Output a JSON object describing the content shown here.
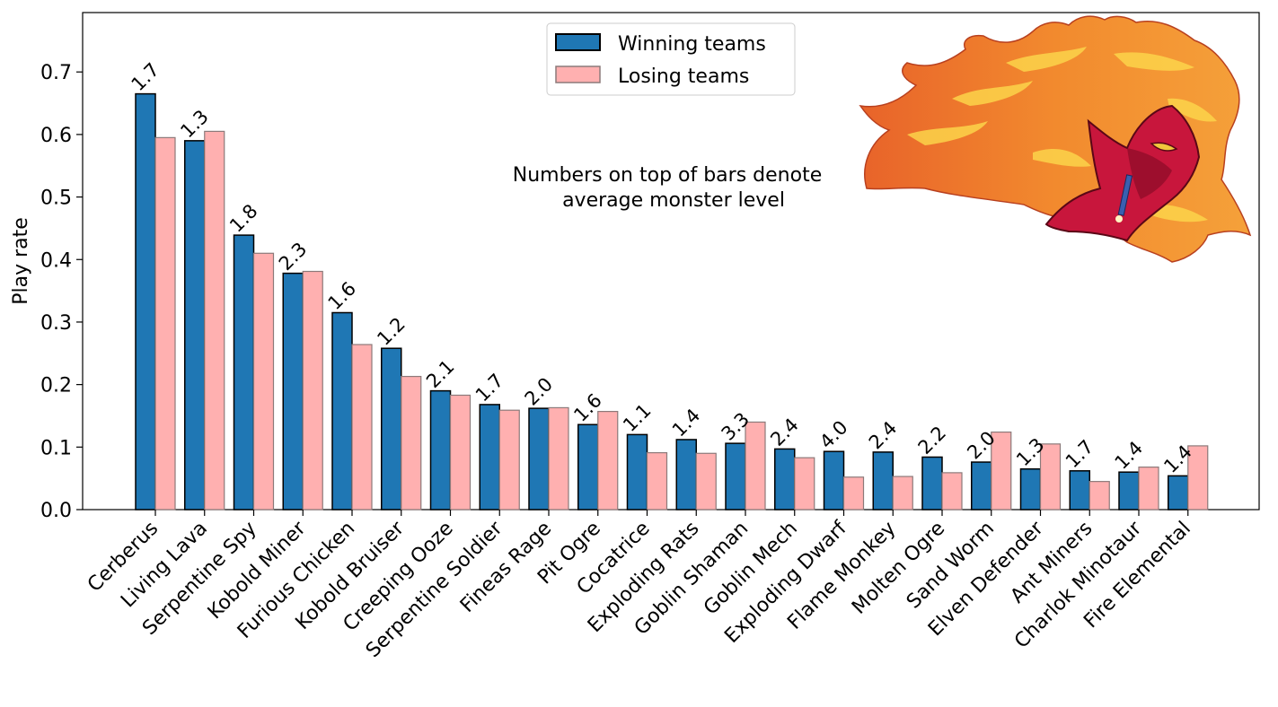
{
  "chart_data": {
    "type": "bar",
    "title": "",
    "xlabel": "",
    "ylabel": "Play rate",
    "ylim": [
      0,
      0.795
    ],
    "yticks": [
      "0.0",
      "0.1",
      "0.2",
      "0.3",
      "0.4",
      "0.5",
      "0.6",
      "0.7"
    ],
    "categories": [
      "Cerberus",
      "Living Lava",
      "Serpentine Spy",
      "Kobold Miner",
      "Furious Chicken",
      "Kobold Bruiser",
      "Creeping Ooze",
      "Serpentine Soldier",
      "Fineas Rage",
      "Pit Ogre",
      "Cocatrice",
      "Exploding Rats",
      "Goblin Shaman",
      "Goblin Mech",
      "Exploding Dwarf",
      "Flame Monkey",
      "Molten Ogre",
      "Sand Worm",
      "Elven Defender",
      "Ant Miners",
      "Charlok Minotaur",
      "Fire Elemental"
    ],
    "series": [
      {
        "name": "Winning teams",
        "color": "#1f77b4",
        "values": [
          0.665,
          0.59,
          0.439,
          0.378,
          0.315,
          0.258,
          0.19,
          0.168,
          0.162,
          0.136,
          0.12,
          0.112,
          0.106,
          0.097,
          0.093,
          0.092,
          0.084,
          0.076,
          0.065,
          0.062,
          0.06,
          0.054
        ]
      },
      {
        "name": "Losing teams",
        "color": "#ffb0b0",
        "values": [
          0.595,
          0.605,
          0.41,
          0.381,
          0.264,
          0.213,
          0.183,
          0.159,
          0.163,
          0.157,
          0.091,
          0.09,
          0.14,
          0.083,
          0.052,
          0.053,
          0.059,
          0.124,
          0.105,
          0.045,
          0.068,
          0.102
        ]
      }
    ],
    "bar_labels": [
      "1.7",
      "1.3",
      "1.8",
      "2.3",
      "1.6",
      "1.2",
      "2.1",
      "1.7",
      "2.0",
      "1.6",
      "1.1",
      "1.4",
      "3.3",
      "2.4",
      "4.0",
      "2.4",
      "2.2",
      "2.0",
      "1.3",
      "1.7",
      "1.4",
      "1.4"
    ],
    "annotation": [
      "Numbers on top of bars denote",
      "average monster level"
    ],
    "legend_position": "top-center",
    "grid": false
  },
  "image": {
    "name": "fire-demon-illustration"
  }
}
